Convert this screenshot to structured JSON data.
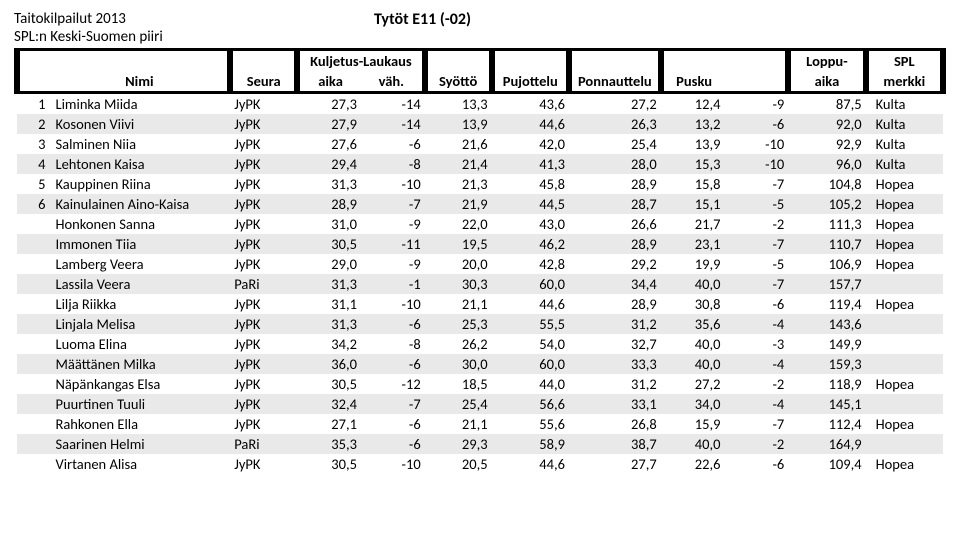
{
  "header": {
    "title_left_1": "Taitokilpailut 2013",
    "title_left_2": "SPL:n Keski-Suomen piiri",
    "title_center": "Tytöt E11 (-02)"
  },
  "columns": {
    "nimi": "Nimi",
    "seura": "Seura",
    "kuljetus_top": "Kuljetus-Laukaus",
    "aika": "aika",
    "vah": "väh.",
    "syotto": "Syöttö",
    "pujottelu": "Pujottelu",
    "ponnauttelu": "Ponnauttelu",
    "pusku": "Pusku",
    "loppu_top": "Loppu-",
    "loppu_bot": "aika",
    "spl_top": "SPL",
    "spl_bot": "merkki"
  },
  "rows": [
    {
      "rank": "1",
      "name": "Liminka Miida",
      "club": "JyPK",
      "kl_aika": "27,3",
      "vah": "-14",
      "syotto": "13,3",
      "puj": "43,6",
      "pon": "27,2",
      "pusku": "12,4",
      "pen": "-9",
      "loppu": "87,5",
      "medal": "Kulta",
      "shade": false
    },
    {
      "rank": "2",
      "name": "Kosonen Viivi",
      "club": "JyPK",
      "kl_aika": "27,9",
      "vah": "-14",
      "syotto": "13,9",
      "puj": "44,6",
      "pon": "26,3",
      "pusku": "13,2",
      "pen": "-6",
      "loppu": "92,0",
      "medal": "Kulta",
      "shade": true
    },
    {
      "rank": "3",
      "name": "Salminen Niia",
      "club": "JyPK",
      "kl_aika": "27,6",
      "vah": "-6",
      "syotto": "21,6",
      "puj": "42,0",
      "pon": "25,4",
      "pusku": "13,9",
      "pen": "-10",
      "loppu": "92,9",
      "medal": "Kulta",
      "shade": false
    },
    {
      "rank": "4",
      "name": "Lehtonen Kaisa",
      "club": "JyPK",
      "kl_aika": "29,4",
      "vah": "-8",
      "syotto": "21,4",
      "puj": "41,3",
      "pon": "28,0",
      "pusku": "15,3",
      "pen": "-10",
      "loppu": "96,0",
      "medal": "Kulta",
      "shade": true
    },
    {
      "rank": "5",
      "name": "Kauppinen Riina",
      "club": "JyPK",
      "kl_aika": "31,3",
      "vah": "-10",
      "syotto": "21,3",
      "puj": "45,8",
      "pon": "28,9",
      "pusku": "15,8",
      "pen": "-7",
      "loppu": "104,8",
      "medal": "Hopea",
      "shade": false
    },
    {
      "rank": "6",
      "name": "Kainulainen Aino-Kaisa",
      "club": "JyPK",
      "kl_aika": "28,9",
      "vah": "-7",
      "syotto": "21,9",
      "puj": "44,5",
      "pon": "28,7",
      "pusku": "15,1",
      "pen": "-5",
      "loppu": "105,2",
      "medal": "Hopea",
      "shade": true
    },
    {
      "rank": "",
      "name": "Honkonen Sanna",
      "club": "JyPK",
      "kl_aika": "31,0",
      "vah": "-9",
      "syotto": "22,0",
      "puj": "43,0",
      "pon": "26,6",
      "pusku": "21,7",
      "pen": "-2",
      "loppu": "111,3",
      "medal": "Hopea",
      "shade": false
    },
    {
      "rank": "",
      "name": "Immonen Tiia",
      "club": "JyPK",
      "kl_aika": "30,5",
      "vah": "-11",
      "syotto": "19,5",
      "puj": "46,2",
      "pon": "28,9",
      "pusku": "23,1",
      "pen": "-7",
      "loppu": "110,7",
      "medal": "Hopea",
      "shade": true
    },
    {
      "rank": "",
      "name": "Lamberg Veera",
      "club": "JyPK",
      "kl_aika": "29,0",
      "vah": "-9",
      "syotto": "20,0",
      "puj": "42,8",
      "pon": "29,2",
      "pusku": "19,9",
      "pen": "-5",
      "loppu": "106,9",
      "medal": "Hopea",
      "shade": false
    },
    {
      "rank": "",
      "name": "Lassila Veera",
      "club": "PaRi",
      "kl_aika": "31,3",
      "vah": "-1",
      "syotto": "30,3",
      "puj": "60,0",
      "pon": "34,4",
      "pusku": "40,0",
      "pen": "-7",
      "loppu": "157,7",
      "medal": "",
      "shade": true
    },
    {
      "rank": "",
      "name": "Lilja Riikka",
      "club": "JyPK",
      "kl_aika": "31,1",
      "vah": "-10",
      "syotto": "21,1",
      "puj": "44,6",
      "pon": "28,9",
      "pusku": "30,8",
      "pen": "-6",
      "loppu": "119,4",
      "medal": "Hopea",
      "shade": false
    },
    {
      "rank": "",
      "name": "Linjala Melisa",
      "club": "JyPK",
      "kl_aika": "31,3",
      "vah": "-6",
      "syotto": "25,3",
      "puj": "55,5",
      "pon": "31,2",
      "pusku": "35,6",
      "pen": "-4",
      "loppu": "143,6",
      "medal": "",
      "shade": true
    },
    {
      "rank": "",
      "name": "Luoma Elina",
      "club": "JyPK",
      "kl_aika": "34,2",
      "vah": "-8",
      "syotto": "26,2",
      "puj": "54,0",
      "pon": "32,7",
      "pusku": "40,0",
      "pen": "-3",
      "loppu": "149,9",
      "medal": "",
      "shade": false
    },
    {
      "rank": "",
      "name": "Määttänen Milka",
      "club": "JyPK",
      "kl_aika": "36,0",
      "vah": "-6",
      "syotto": "30,0",
      "puj": "60,0",
      "pon": "33,3",
      "pusku": "40,0",
      "pen": "-4",
      "loppu": "159,3",
      "medal": "",
      "shade": true
    },
    {
      "rank": "",
      "name": "Näpänkangas Elsa",
      "club": "JyPK",
      "kl_aika": "30,5",
      "vah": "-12",
      "syotto": "18,5",
      "puj": "44,0",
      "pon": "31,2",
      "pusku": "27,2",
      "pen": "-2",
      "loppu": "118,9",
      "medal": "Hopea",
      "shade": false
    },
    {
      "rank": "",
      "name": "Puurtinen Tuuli",
      "club": "JyPK",
      "kl_aika": "32,4",
      "vah": "-7",
      "syotto": "25,4",
      "puj": "56,6",
      "pon": "33,1",
      "pusku": "34,0",
      "pen": "-4",
      "loppu": "145,1",
      "medal": "",
      "shade": true
    },
    {
      "rank": "",
      "name": "Rahkonen Ella",
      "club": "JyPK",
      "kl_aika": "27,1",
      "vah": "-6",
      "syotto": "21,1",
      "puj": "55,6",
      "pon": "26,8",
      "pusku": "15,9",
      "pen": "-7",
      "loppu": "112,4",
      "medal": "Hopea",
      "shade": false
    },
    {
      "rank": "",
      "name": "Saarinen Helmi",
      "club": "PaRi",
      "kl_aika": "35,3",
      "vah": "-6",
      "syotto": "29,3",
      "puj": "58,9",
      "pon": "38,7",
      "pusku": "40,0",
      "pen": "-2",
      "loppu": "164,9",
      "medal": "",
      "shade": true
    },
    {
      "rank": "",
      "name": "Virtanen Alisa",
      "club": "JyPK",
      "kl_aika": "30,5",
      "vah": "-10",
      "syotto": "20,5",
      "puj": "44,6",
      "pon": "27,7",
      "pusku": "22,6",
      "pen": "-6",
      "loppu": "109,4",
      "medal": "Hopea",
      "shade": false
    }
  ],
  "style": {
    "shade_bg": "#e9e9e9",
    "text_color": "#000000"
  }
}
